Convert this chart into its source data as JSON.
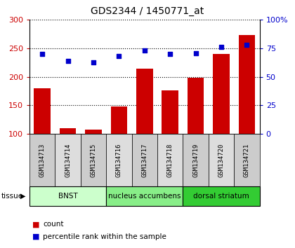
{
  "title": "GDS2344 / 1450771_at",
  "samples": [
    "GSM134713",
    "GSM134714",
    "GSM134715",
    "GSM134716",
    "GSM134717",
    "GSM134718",
    "GSM134719",
    "GSM134720",
    "GSM134721"
  ],
  "counts": [
    180,
    110,
    107,
    148,
    214,
    176,
    198,
    240,
    273
  ],
  "percentiles": [
    70,
    64,
    63,
    68,
    73,
    70,
    71,
    76,
    78
  ],
  "bar_color": "#cc0000",
  "dot_color": "#0000cc",
  "ylim_left": [
    100,
    300
  ],
  "ylim_right": [
    0,
    100
  ],
  "yticks_left": [
    100,
    150,
    200,
    250,
    300
  ],
  "yticks_right": [
    0,
    25,
    50,
    75,
    100
  ],
  "ytick_labels_right": [
    "0",
    "25",
    "50",
    "75",
    "100%"
  ],
  "groups": [
    {
      "label": "BNST",
      "start": 0,
      "end": 3,
      "color": "#ccffcc"
    },
    {
      "label": "nucleus accumbens",
      "start": 3,
      "end": 6,
      "color": "#88ee88"
    },
    {
      "label": "dorsal striatum",
      "start": 6,
      "end": 9,
      "color": "#33cc33"
    }
  ],
  "tissue_label": "tissue",
  "legend_items": [
    {
      "label": "count",
      "color": "#cc0000"
    },
    {
      "label": "percentile rank within the sample",
      "color": "#0000cc"
    }
  ],
  "grid_color": "#000000",
  "bg_color": "#ffffff",
  "plot_bg": "#ffffff",
  "bar_bottom": 100,
  "sample_box_colors": [
    "#cccccc",
    "#dddddd"
  ]
}
